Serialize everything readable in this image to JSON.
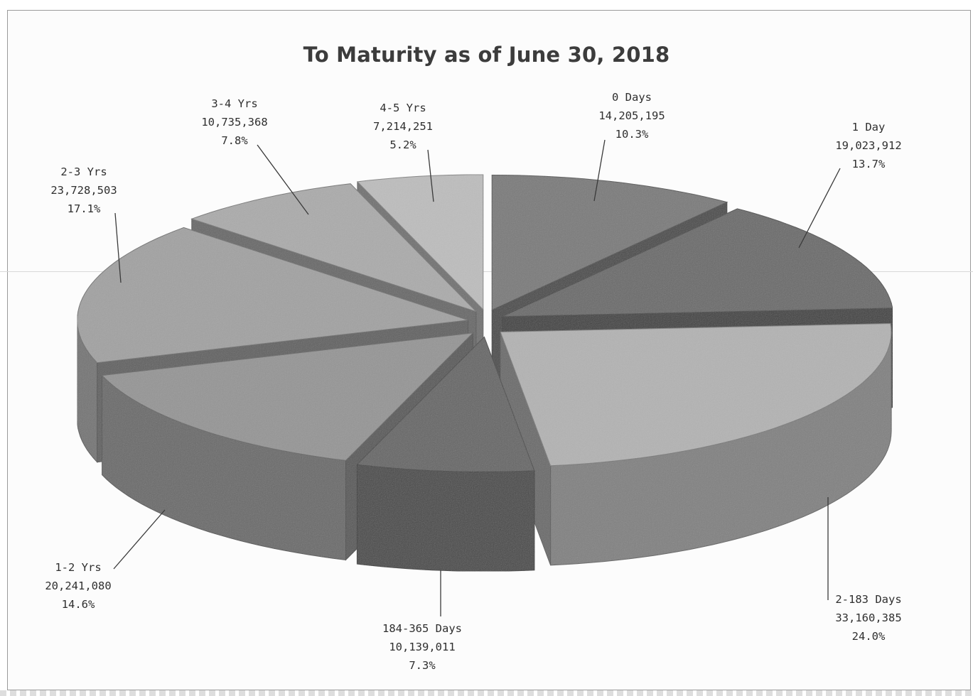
{
  "chart_data": {
    "type": "pie",
    "title": "To Maturity as of June 30, 2018",
    "slices": [
      {
        "label": "0 Days",
        "value": 14205195,
        "value_text": "14,205,195",
        "percent": "10.3%",
        "color": "#7a7a7a"
      },
      {
        "label": "1 Day",
        "value": 19023912,
        "value_text": "19,023,912",
        "percent": "13.7%",
        "color": "#6b6b6b"
      },
      {
        "label": "2-183 Days",
        "value": 33160385,
        "value_text": "33,160,385",
        "percent": "24.0%",
        "color": "#b3b3b3"
      },
      {
        "label": "184-365 Days",
        "value": 10139011,
        "value_text": "10,139,011",
        "percent": "7.3%",
        "color": "#666666"
      },
      {
        "label": "1-2 Yrs",
        "value": 20241080,
        "value_text": "20,241,080",
        "percent": "14.6%",
        "color": "#959595"
      },
      {
        "label": "2-3 Yrs",
        "value": 23728503,
        "value_text": "23,728,503",
        "percent": "17.1%",
        "color": "#a2a2a2"
      },
      {
        "label": "3-4 Yrs",
        "value": 10735368,
        "value_text": "10,735,368",
        "percent": "7.8%",
        "color": "#ababab"
      },
      {
        "label": "4-5 Yrs",
        "value": 7214251,
        "value_text": "7,214,251",
        "percent": "5.2%",
        "color": "#bdbdbd"
      }
    ],
    "exploded": true,
    "three_d": true,
    "legend": "none"
  }
}
